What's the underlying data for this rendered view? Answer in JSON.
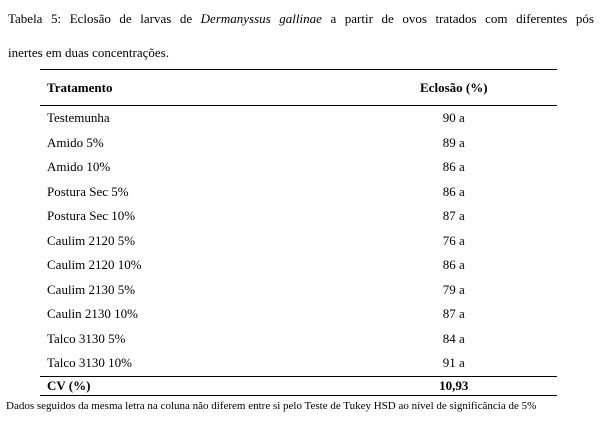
{
  "caption": {
    "prefix": "Tabela 5: Eclosão de larvas de ",
    "species": "Dermanyssus gallinae",
    "suffix_line1": " a partir de ovos tratados com diferentes pós",
    "line2": "inertes em duas concentrações."
  },
  "table": {
    "headers": {
      "treatment": "Tratamento",
      "hatching": "Eclosão (%)"
    },
    "rows": [
      {
        "treatment": "Testemunha",
        "hatching": "90 a"
      },
      {
        "treatment": "Amido 5%",
        "hatching": "89 a"
      },
      {
        "treatment": "Amido 10%",
        "hatching": "86 a"
      },
      {
        "treatment": "Postura Sec 5%",
        "hatching": "86 a"
      },
      {
        "treatment": "Postura Sec 10%",
        "hatching": "87 a"
      },
      {
        "treatment": "Caulim 2120 5%",
        "hatching": "76 a"
      },
      {
        "treatment": "Caulim 2120 10%",
        "hatching": "86 a"
      },
      {
        "treatment": "Caulim 2130 5%",
        "hatching": "79 a"
      },
      {
        "treatment": "Caulin 2130 10%",
        "hatching": "87 a"
      },
      {
        "treatment": "Talco 3130 5%",
        "hatching": "84 a"
      },
      {
        "treatment": "Talco 3130 10%",
        "hatching": "91 a"
      }
    ],
    "footer": {
      "label": "CV (%)",
      "value": "10,93"
    }
  },
  "footnote": "Dados seguidos da mesma letra na coluna não diferem entre si pelo Teste de Tukey HSD ao nível de significância de 5%"
}
